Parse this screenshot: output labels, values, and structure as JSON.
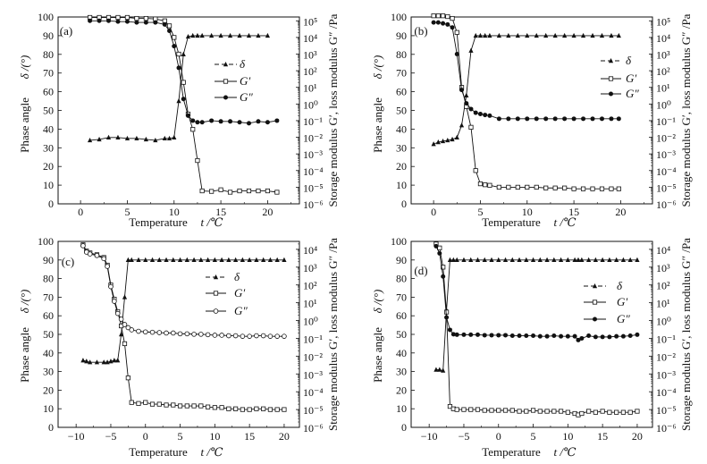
{
  "colors": {
    "ink": "#111111",
    "background": "#ffffff"
  },
  "chart_data": [
    {
      "panel_label": "(a)",
      "type": "line",
      "grid": false,
      "legend": "upper-center-right",
      "xlabel_text": "Temperature",
      "xlabel_symbol": "t /℃",
      "ylabel_left_text": "Phase angle",
      "ylabel_left_symbol": "δ /(°)",
      "ylabel_right": "Storage modulus G′, loss modulus G″ /Pa",
      "xlim": [
        -2.4,
        23.4
      ],
      "ylim_left": [
        0,
        100
      ],
      "ylim_right": [
        1e-06,
        170000.0
      ],
      "yscale_right": "log",
      "x_ticks": [
        0,
        5,
        10,
        15,
        20
      ],
      "x_tick_labels": [
        "0",
        "5",
        "10",
        "15",
        "20"
      ],
      "y_left_ticks": [
        0,
        10,
        20,
        30,
        40,
        50,
        60,
        70,
        80,
        90,
        100
      ],
      "y_left_tick_labels": [
        "0",
        "10",
        "20",
        "30",
        "40",
        "50",
        "60",
        "70",
        "80",
        "90",
        "100"
      ],
      "y_right_ticks": [
        1e-06,
        1e-05,
        0.0001,
        0.001,
        0.01,
        0.1,
        1,
        10,
        100,
        1000,
        10000.0,
        100000.0
      ],
      "y_right_tick_labels": [
        "10⁻⁶",
        "10⁻⁵",
        "10⁻⁴",
        "10⁻³",
        "10⁻²",
        "10⁻¹",
        "10⁰",
        "10¹",
        "10²",
        "10³",
        "10⁴",
        "10⁵"
      ],
      "x": [
        1,
        2,
        3,
        4,
        5,
        6,
        7,
        8,
        9,
        9.5,
        10,
        10.5,
        11,
        11.5,
        12,
        12.5,
        13,
        14,
        15,
        16,
        17,
        18,
        19,
        20,
        21
      ],
      "series": [
        {
          "name": "δ",
          "axis": "left",
          "marker": "filled-triangle",
          "line": "dashed",
          "values": [
            34,
            34.5,
            35.5,
            35.5,
            35,
            35,
            34.5,
            34,
            35,
            35,
            35.5,
            55,
            80,
            89.5,
            90,
            90,
            90,
            90,
            90,
            90,
            90,
            90,
            90,
            90,
            null
          ]
        },
        {
          "name": "G′",
          "axis": "right",
          "marker": "open-square",
          "line": "solid",
          "values": [
            160000.0,
            160000.0,
            160000.0,
            160000.0,
            160000.0,
            140000.0,
            140000.0,
            130000.0,
            100000.0,
            50000.0,
            10000.0,
            1000.0,
            20,
            0.25,
            0.03,
            0.0004,
            6e-06,
            5.6e-06,
            7e-06,
            5e-06,
            6e-06,
            6e-06,
            6e-06,
            6e-06,
            5e-06
          ]
        },
        {
          "name": "G″",
          "axis": "right",
          "marker": "filled-circle",
          "line": "solid",
          "values": [
            100000.0,
            100000.0,
            100000.0,
            90000.0,
            90000.0,
            80000.0,
            80000.0,
            80000.0,
            60000.0,
            25000.0,
            3000.0,
            150,
            2,
            0.2,
            0.1,
            0.08,
            0.08,
            0.1,
            0.09,
            0.09,
            0.08,
            0.07,
            0.09,
            0.08,
            0.1
          ]
        }
      ]
    },
    {
      "panel_label": "(b)",
      "type": "line",
      "grid": false,
      "legend": "upper-right",
      "xlabel_text": "Temperature",
      "xlabel_symbol": "t /℃",
      "ylabel_left_text": "Phase angle",
      "ylabel_left_symbol": "δ /(°)",
      "ylabel_right": "Storage modulus G′, loss modulus G″ /Pa",
      "xlim": [
        -2.4,
        23.4
      ],
      "ylim_left": [
        0,
        100
      ],
      "ylim_right": [
        1e-06,
        170000.0
      ],
      "yscale_right": "log",
      "x_ticks": [
        0,
        5,
        10,
        15,
        20
      ],
      "x_tick_labels": [
        "0",
        "5",
        "10",
        "15",
        "20"
      ],
      "y_left_ticks": [
        0,
        10,
        20,
        30,
        40,
        50,
        60,
        70,
        80,
        90,
        100
      ],
      "y_left_tick_labels": [
        "0",
        "10",
        "20",
        "30",
        "40",
        "50",
        "60",
        "70",
        "80",
        "90",
        "100"
      ],
      "y_right_ticks": [
        1e-06,
        1e-05,
        0.0001,
        0.001,
        0.01,
        0.1,
        1,
        10,
        100,
        1000,
        10000.0,
        100000.0
      ],
      "y_right_tick_labels": [
        "10⁻⁶",
        "10⁻⁵",
        "10⁻⁴",
        "10⁻³",
        "10⁻²",
        "10⁻¹",
        "10⁰",
        "10¹",
        "10²",
        "10³",
        "10⁴",
        "10⁵"
      ],
      "x": [
        0,
        0.5,
        1,
        1.5,
        2,
        2.5,
        3,
        3.5,
        4,
        4.5,
        5,
        5.5,
        6,
        7,
        8,
        9,
        10,
        11,
        12,
        13,
        14,
        15,
        16,
        17,
        18,
        19,
        19.8
      ],
      "series": [
        {
          "name": "δ",
          "axis": "left",
          "marker": "filled-triangle",
          "line": "dashed",
          "values": [
            32,
            33,
            33.5,
            34,
            34.5,
            35.5,
            42,
            58,
            82,
            90,
            90,
            90,
            90,
            90,
            90,
            90,
            90,
            90,
            90,
            90,
            90,
            90,
            90,
            90,
            90,
            90,
            90
          ]
        },
        {
          "name": "G′",
          "axis": "right",
          "marker": "open-square",
          "line": "solid",
          "values": [
            200000.0,
            200000.0,
            200000.0,
            180000.0,
            140000.0,
            20000.0,
            10,
            0.7,
            0.04,
            0.0001,
            1.6e-05,
            1.4e-05,
            1.3e-05,
            1e-05,
            1e-05,
            1e-05,
            1e-05,
            1e-05,
            9e-06,
            9e-06,
            9e-06,
            8e-06,
            8e-06,
            8e-06,
            8e-06,
            8e-06,
            8e-06
          ]
        },
        {
          "name": "G″",
          "axis": "right",
          "marker": "filled-circle",
          "line": "solid",
          "values": [
            80000.0,
            80000.0,
            70000.0,
            60000.0,
            40000.0,
            1000.0,
            7,
            1.1,
            0.5,
            0.3,
            0.25,
            0.22,
            0.2,
            0.13,
            0.13,
            0.13,
            0.13,
            0.13,
            0.13,
            0.13,
            0.13,
            0.13,
            0.13,
            0.13,
            0.13,
            0.13,
            0.13
          ]
        }
      ]
    },
    {
      "panel_label": "(c)",
      "type": "line",
      "grid": false,
      "legend": "upper-center-right",
      "xlabel_text": "Temperature",
      "xlabel_symbol": "t /℃",
      "ylabel_left_text": "Phase angle",
      "ylabel_left_symbol": "δ /(°)",
      "ylabel_right": "Storage modulus G′, loss modulus G″ /Pa",
      "xlim": [
        -12.6,
        22.2
      ],
      "ylim_left": [
        0,
        100
      ],
      "ylim_right": [
        1e-06,
        28000.0
      ],
      "yscale_right": "log",
      "x_ticks": [
        -10,
        -5,
        0,
        5,
        10,
        15,
        20
      ],
      "x_tick_labels": [
        "−10",
        "−5",
        "0",
        "5",
        "10",
        "15",
        "20"
      ],
      "y_left_ticks": [
        0,
        10,
        20,
        30,
        40,
        50,
        60,
        70,
        80,
        90,
        100
      ],
      "y_left_tick_labels": [
        "0",
        "10",
        "20",
        "30",
        "40",
        "50",
        "60",
        "70",
        "80",
        "90",
        "100"
      ],
      "y_right_ticks": [
        1e-06,
        1e-05,
        0.0001,
        0.001,
        0.01,
        0.1,
        1,
        10,
        100,
        1000,
        10000.0
      ],
      "y_right_tick_labels": [
        "10⁻⁶",
        "10⁻⁵",
        "10⁻⁴",
        "10⁻³",
        "10⁻²",
        "10⁻¹",
        "10⁰",
        "10¹",
        "10²",
        "10³",
        "10⁴"
      ],
      "x": [
        -9,
        -8.5,
        -8,
        -7,
        -6,
        -5.5,
        -5,
        -4.5,
        -4,
        -3.5,
        -3,
        -2.5,
        -2,
        -1,
        0,
        1,
        2,
        3,
        4,
        5,
        6,
        7,
        8,
        9,
        10,
        11,
        12,
        13,
        14,
        15,
        16,
        17,
        18,
        19,
        20
      ],
      "series": [
        {
          "name": "δ",
          "axis": "left",
          "marker": "filled-triangle",
          "line": "dashed",
          "values": [
            36,
            35.5,
            35,
            35,
            35,
            35,
            35.5,
            36,
            36,
            50,
            70,
            90,
            90,
            90,
            90,
            90,
            90,
            90,
            90,
            90,
            90,
            90,
            90,
            90,
            90,
            90,
            90,
            90,
            90,
            90,
            90,
            90,
            90,
            90,
            90
          ]
        },
        {
          "name": "G′",
          "axis": "right",
          "marker": "open-square",
          "line": "solid",
          "values": [
            18000.0,
            8000.0,
            6300.0,
            5000.0,
            3500.0,
            1300.0,
            100,
            16,
            3.2,
            0.5,
            0.05,
            0.0006,
            2.5e-05,
            2.2e-05,
            2.5e-05,
            2e-05,
            2e-05,
            1.8e-05,
            1.8e-05,
            1.6e-05,
            1.6e-05,
            1.6e-05,
            1.6e-05,
            1.4e-05,
            1.3e-05,
            1.3e-05,
            1.1e-05,
            1.1e-05,
            1e-05,
            1e-05,
            1.1e-05,
            1.1e-05,
            1e-05,
            1e-05,
            1e-05
          ]
        },
        {
          "name": "G″",
          "axis": "right",
          "marker": "open-circle",
          "line": "solid",
          "values": [
            16000.0,
            7000.0,
            5500.0,
            4500.0,
            3000.0,
            1100.0,
            80,
            12,
            2.5,
            1.2,
            0.6,
            0.4,
            0.3,
            0.25,
            0.23,
            0.22,
            0.21,
            0.2,
            0.2,
            0.18,
            0.18,
            0.17,
            0.17,
            0.16,
            0.15,
            0.15,
            0.14,
            0.14,
            0.13,
            0.13,
            0.14,
            0.14,
            0.13,
            0.13,
            0.13
          ]
        }
      ]
    },
    {
      "panel_label": "(d)",
      "type": "line",
      "grid": false,
      "legend": "upper-right",
      "xlabel_text": "Temperature",
      "xlabel_symbol": "t /℃",
      "ylabel_left_text": "Phase angle",
      "ylabel_left_symbol": "δ /(°)",
      "ylabel_right": "Storage modulus G′, loss modulus G″ /Pa",
      "xlim": [
        -12.6,
        22.2
      ],
      "ylim_left": [
        0,
        100
      ],
      "ylim_right": [
        1e-06,
        28000.0
      ],
      "yscale_right": "log",
      "x_ticks": [
        -10,
        -5,
        0,
        5,
        10,
        15,
        20
      ],
      "x_tick_labels": [
        "−10",
        "−5",
        "0",
        "5",
        "10",
        "15",
        "20"
      ],
      "y_left_ticks": [
        0,
        10,
        20,
        30,
        40,
        50,
        60,
        70,
        80,
        90,
        100
      ],
      "y_left_tick_labels": [
        "0",
        "10",
        "20",
        "30",
        "40",
        "50",
        "60",
        "70",
        "80",
        "90",
        "100"
      ],
      "y_right_ticks": [
        1e-06,
        1e-05,
        0.0001,
        0.001,
        0.01,
        0.1,
        1,
        10,
        100,
        1000,
        10000.0
      ],
      "y_right_tick_labels": [
        "10⁻⁶",
        "10⁻⁵",
        "10⁻⁴",
        "10⁻³",
        "10⁻²",
        "10⁻¹",
        "10⁰",
        "10¹",
        "10²",
        "10³",
        "10⁴"
      ],
      "x": [
        -9,
        -8.5,
        -8,
        -7.5,
        -7,
        -6.5,
        -6,
        -5,
        -4,
        -3,
        -2,
        -1,
        0,
        1,
        2,
        3,
        4,
        5,
        6,
        7,
        8,
        9,
        10,
        11,
        11.5,
        12,
        13,
        14,
        15,
        16,
        17,
        18,
        19,
        20
      ],
      "series": [
        {
          "name": "δ",
          "axis": "left",
          "marker": "filled-triangle",
          "line": "dashed",
          "values": [
            31,
            31,
            30.5,
            63,
            90,
            90,
            90,
            90,
            90,
            90,
            90,
            90,
            90,
            90,
            90,
            90,
            90,
            90,
            90,
            90,
            90,
            90,
            90,
            90,
            90,
            90,
            90,
            90,
            90,
            90,
            90,
            90,
            90,
            90
          ]
        },
        {
          "name": "G′",
          "axis": "right",
          "marker": "open-square",
          "line": "solid",
          "values": [
            20000.0,
            12000.0,
            1000.0,
            3,
            1.5e-05,
            1.1e-05,
            1e-05,
            1e-05,
            1e-05,
            1e-05,
            9e-06,
            9e-06,
            9e-06,
            9e-06,
            9e-06,
            8e-06,
            8e-06,
            9e-06,
            8e-06,
            8e-06,
            8e-06,
            8e-06,
            7e-06,
            6e-06,
            5e-06,
            6e-06,
            8e-06,
            7e-06,
            8e-06,
            7e-06,
            7e-06,
            7e-06,
            7e-06,
            8e-06
          ]
        },
        {
          "name": "G″",
          "axis": "right",
          "marker": "filled-circle",
          "line": "solid",
          "values": [
            15000.0,
            6000.0,
            300,
            1.5,
            0.3,
            0.17,
            0.16,
            0.16,
            0.16,
            0.16,
            0.15,
            0.15,
            0.15,
            0.15,
            0.14,
            0.14,
            0.14,
            0.14,
            0.13,
            0.13,
            0.14,
            0.13,
            0.13,
            0.13,
            0.08,
            0.1,
            0.14,
            0.12,
            0.12,
            0.12,
            0.13,
            0.13,
            0.14,
            0.16
          ]
        }
      ]
    }
  ]
}
